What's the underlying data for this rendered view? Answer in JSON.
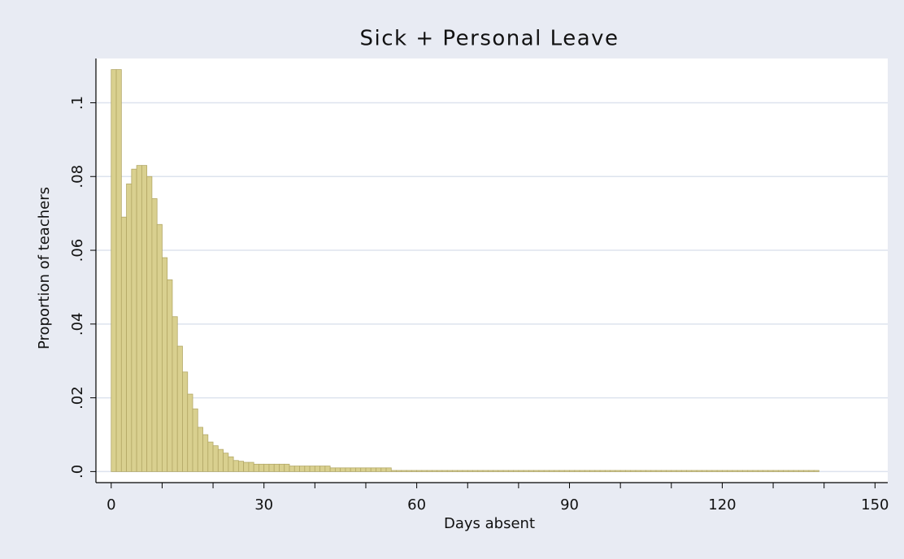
{
  "chart_data": {
    "type": "histogram",
    "title": "Sick + Personal Leave",
    "x_label": "Days absent",
    "y_label": "Proportion of teachers",
    "color": "#d9d08f",
    "edge_color": "#b3a866",
    "grid": true,
    "xlim": [
      -3,
      152.5
    ],
    "ylim": [
      -0.003,
      0.112
    ],
    "xticks": [
      0,
      30,
      60,
      90,
      120,
      150
    ],
    "xminorticks": [
      10,
      20,
      40,
      50,
      70,
      80,
      100,
      110,
      130,
      140
    ],
    "yticks": [
      {
        "value": 0,
        "label": ".0"
      },
      {
        "value": 0.02,
        "label": ".02"
      },
      {
        "value": 0.04,
        "label": ".04"
      },
      {
        "value": 0.06,
        "label": ".06"
      },
      {
        "value": 0.08,
        "label": ".08"
      },
      {
        "value": 0.1,
        "label": ".1"
      }
    ],
    "bins": [
      0,
      1,
      2,
      3,
      4,
      5,
      6,
      7,
      8,
      9,
      10,
      11,
      12,
      13,
      14,
      15,
      16,
      17,
      18,
      19,
      20,
      21,
      22,
      23,
      24,
      25,
      26,
      27,
      28,
      29,
      30,
      31,
      32,
      33,
      34,
      35,
      36,
      37,
      38,
      39,
      40,
      41,
      42,
      43,
      44,
      45,
      46,
      47,
      48,
      49,
      50,
      51,
      52,
      53,
      54,
      55,
      56,
      57,
      58,
      59,
      60,
      61,
      62,
      63,
      64,
      65,
      66,
      67,
      68,
      69,
      70,
      71,
      72,
      73,
      74,
      75,
      76,
      77,
      78,
      79,
      80,
      81,
      82,
      83,
      84,
      85,
      86,
      87,
      88,
      89,
      90,
      91,
      92,
      93,
      94,
      95,
      96,
      97,
      98,
      99,
      100,
      101,
      102,
      103,
      104,
      105,
      106,
      107,
      108,
      109,
      110,
      111,
      112,
      113,
      114,
      115,
      116,
      117,
      118,
      119,
      120,
      121,
      122,
      123,
      124,
      125,
      126,
      127,
      128,
      129,
      130,
      131,
      132,
      133,
      134,
      135,
      136,
      137,
      138,
      139
    ],
    "values": [
      0.109,
      0.109,
      0.069,
      0.078,
      0.082,
      0.083,
      0.083,
      0.08,
      0.074,
      0.067,
      0.058,
      0.052,
      0.042,
      0.034,
      0.027,
      0.021,
      0.017,
      0.012,
      0.01,
      0.008,
      0.007,
      0.006,
      0.005,
      0.004,
      0.003,
      0.0028,
      0.0025,
      0.0025,
      0.002,
      0.002,
      0.002,
      0.002,
      0.002,
      0.002,
      0.002,
      0.0015,
      0.0015,
      0.0015,
      0.0015,
      0.0015,
      0.0015,
      0.0015,
      0.0015,
      0.001,
      0.001,
      0.001,
      0.001,
      0.001,
      0.001,
      0.001,
      0.001,
      0.001,
      0.001,
      0.001,
      0.001,
      0.0003,
      0.0003,
      0.0003,
      0.0003,
      0.0003,
      0.0003,
      0.0003,
      0.0003,
      0.0003,
      0.0003,
      0.0003,
      0.0003,
      0.0003,
      0.0003,
      0.0003,
      0.0003,
      0.0003,
      0.0003,
      0.0003,
      0.0003,
      0.0003,
      0.0003,
      0.0003,
      0.0003,
      0.0003,
      0.0003,
      0.0003,
      0.0003,
      0.0003,
      0.0003,
      0.0003,
      0.0003,
      0.0003,
      0.0003,
      0.0003,
      0.0003,
      0.0003,
      0.0003,
      0.0003,
      0.0003,
      0.0003,
      0.0003,
      0.0003,
      0.0003,
      0.0003,
      0.0003,
      0.0003,
      0.0003,
      0.0003,
      0.0003,
      0.0003,
      0.0003,
      0.0003,
      0.0003,
      0.0003,
      0.0003,
      0.0003,
      0.0003,
      0.0003,
      0.0003,
      0.0003,
      0.0003,
      0.0003,
      0.0003,
      0.0003,
      0.0003,
      0.0003,
      0.0003,
      0.0003,
      0.0003,
      0.0003,
      0.0003,
      0.0003,
      0.0003,
      0.0003,
      0.0003,
      0.0003,
      0.0003,
      0.0003,
      0.0003,
      0.0003,
      0.0003,
      0.0003,
      0.0003
    ]
  }
}
